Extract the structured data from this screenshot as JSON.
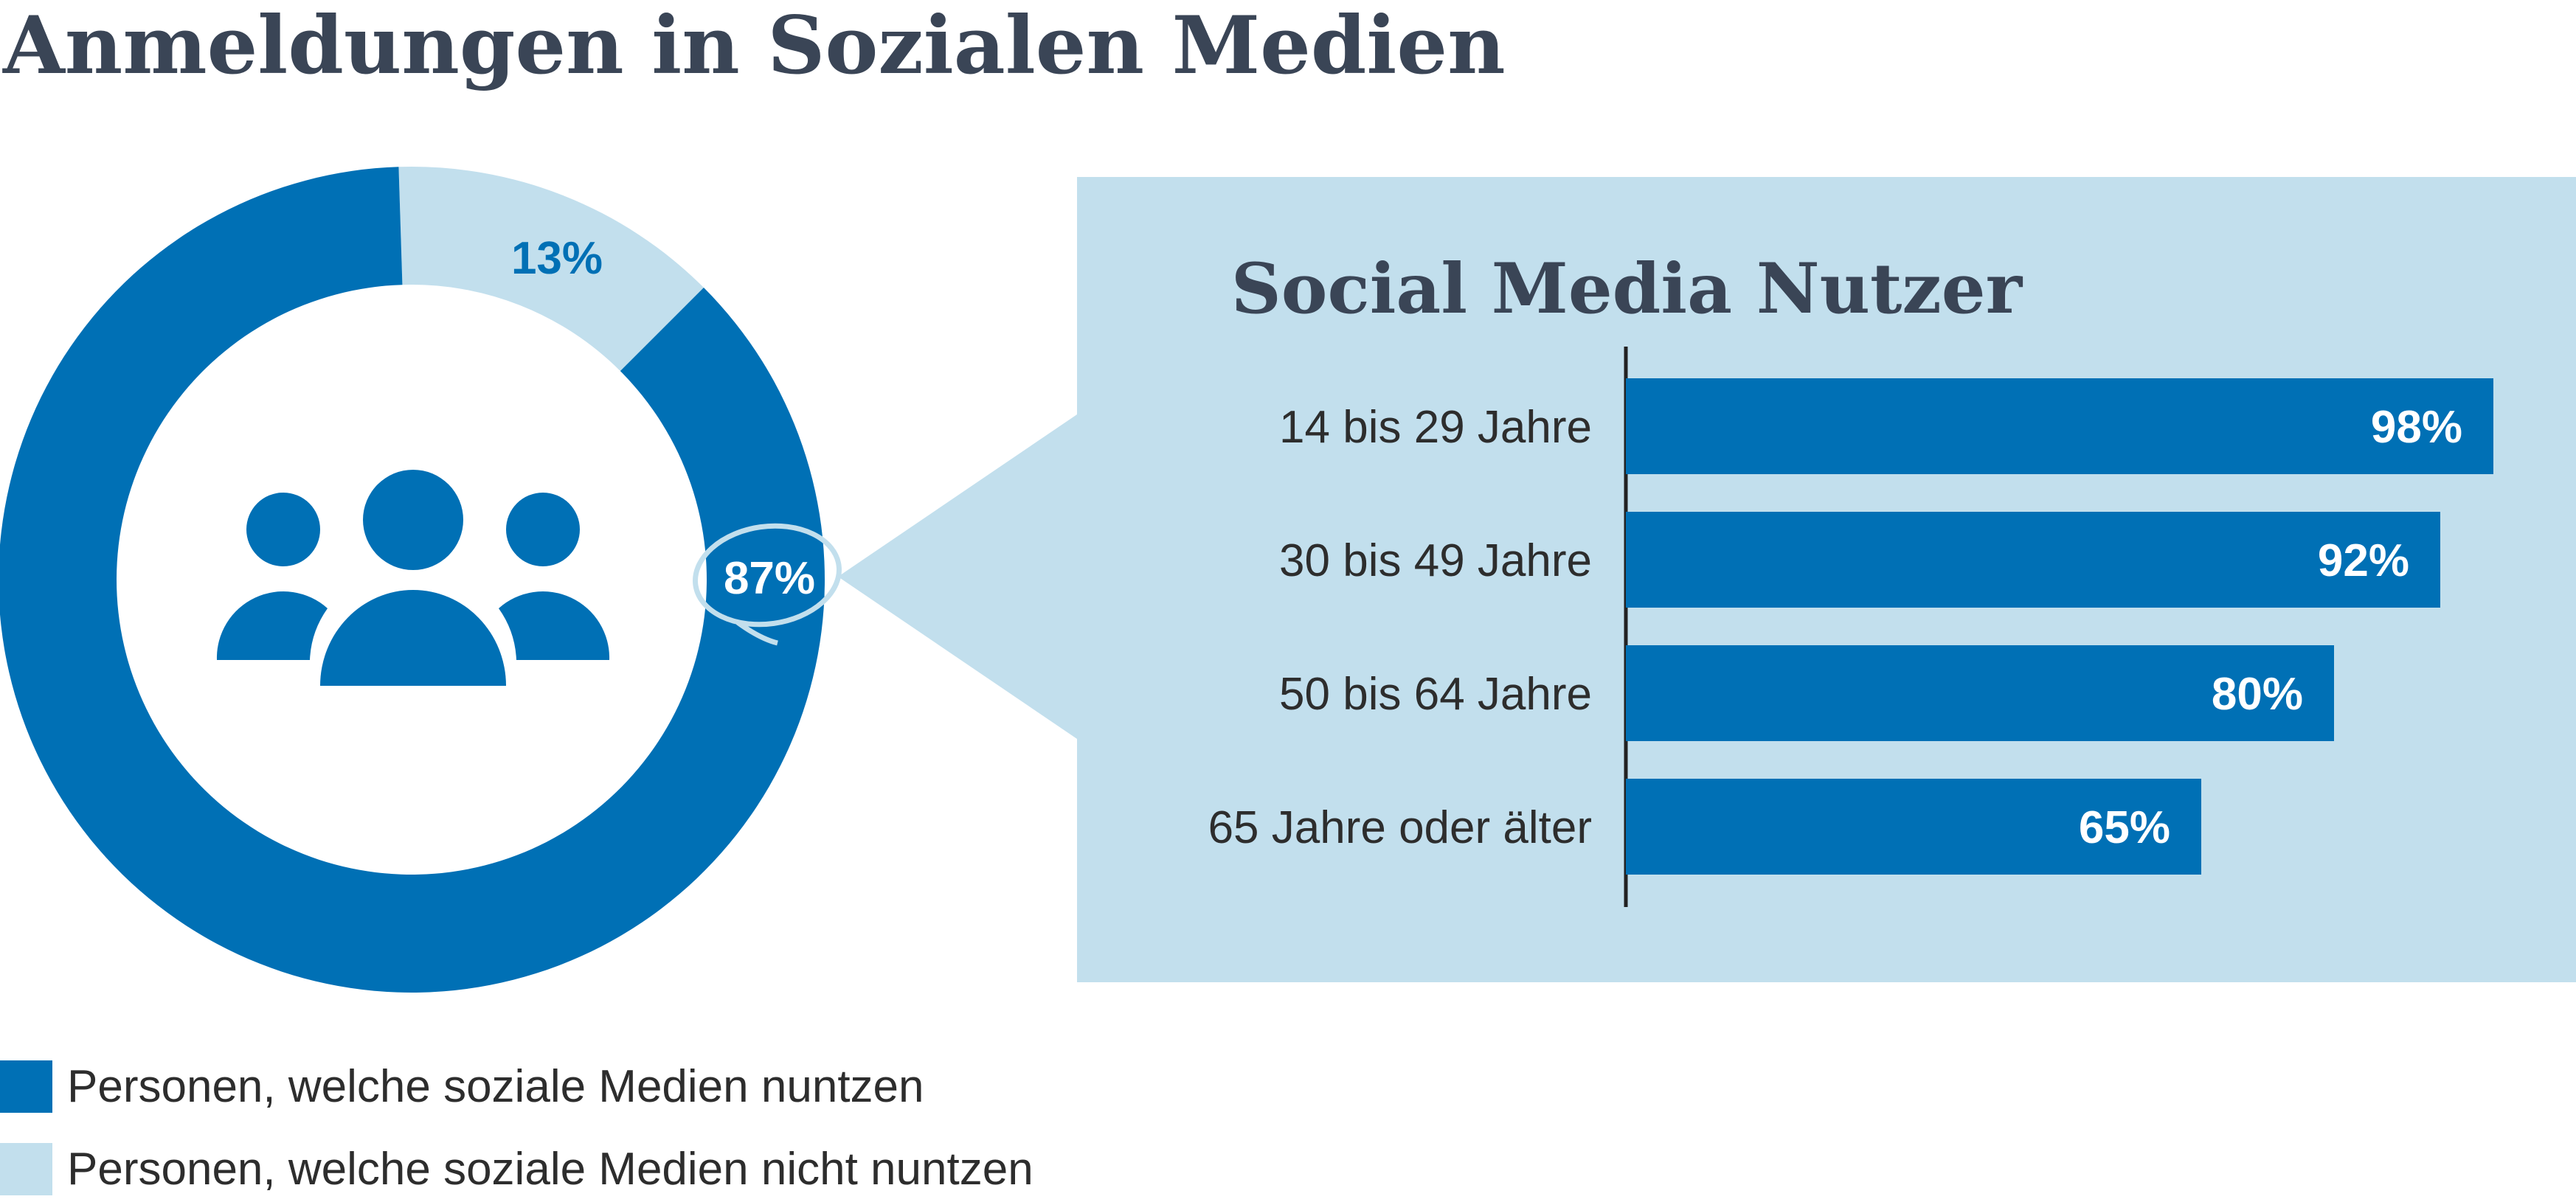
{
  "title": "Anmeldungen in Sozialen Medien",
  "colors": {
    "primary": "#0070b5",
    "light": "#c2dfed",
    "text": "#3a4556",
    "white": "#ffffff"
  },
  "chart_data": [
    {
      "type": "pie",
      "style": "donut",
      "slices": [
        {
          "label": "Personen, welche soziale Medien nuntzen",
          "value": 87,
          "value_label": "87%",
          "color": "#0070b5"
        },
        {
          "label": "Personen, welche soziale Medien nicht nuntzen",
          "value": 13,
          "value_label": "13%",
          "color": "#c2dfed"
        }
      ],
      "center_icon": "people-group-icon",
      "legend_position": "bottom-left"
    },
    {
      "type": "bar",
      "orientation": "horizontal",
      "title": "Social Media Nutzer",
      "categories": [
        "14 bis 29 Jahre",
        "30 bis 49 Jahre",
        "50 bis 64 Jahre",
        "65 Jahre oder älter"
      ],
      "values": [
        98,
        92,
        80,
        65
      ],
      "value_labels": [
        "98%",
        "92%",
        "80%",
        "65%"
      ],
      "xlim": [
        0,
        100
      ],
      "grid": false,
      "bar_color": "#0070b5",
      "panel_color": "#c2dfed"
    }
  ]
}
